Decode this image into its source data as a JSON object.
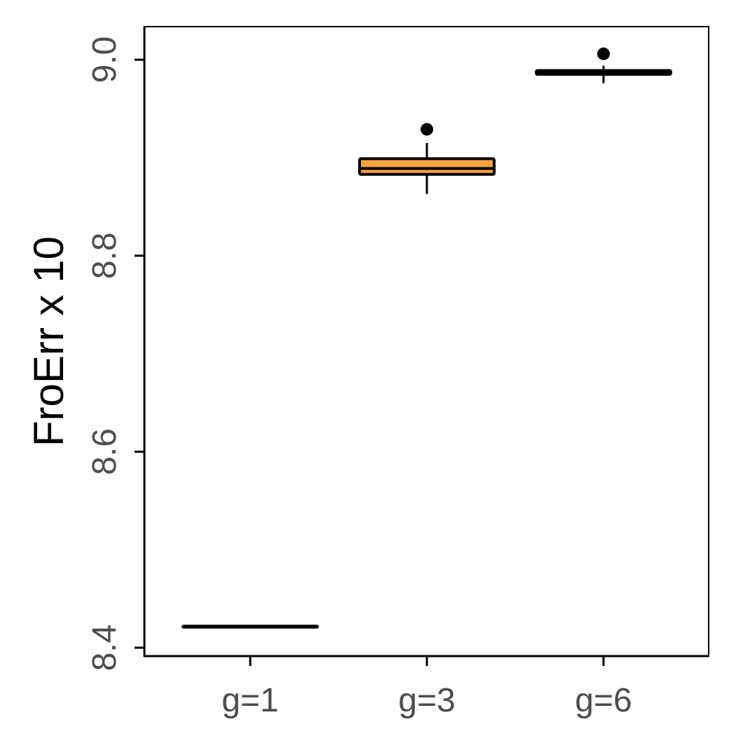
{
  "chart_data": {
    "type": "box",
    "title": "",
    "xlabel": "",
    "ylabel": "FroErr x 10",
    "ylim": [
      8.4,
      9.04
    ],
    "yticks": [
      8.4,
      8.6,
      8.8,
      9.0
    ],
    "ytick_labels": [
      "8.4",
      "8.6",
      "8.8",
      "9.0"
    ],
    "categories": [
      "g=1",
      "g=3",
      "g=6"
    ],
    "grid": false,
    "legend": "none",
    "boxes": [
      {
        "category": "g=1",
        "whisker_low": 8.421,
        "q1": 8.421,
        "median": 8.421,
        "q3": 8.422,
        "whisker_high": 8.422,
        "outliers": [],
        "fill": "#000000"
      },
      {
        "category": "g=3",
        "whisker_low": 8.863,
        "q1": 8.883,
        "median": 8.889,
        "q3": 8.899,
        "whisker_high": 8.915,
        "outliers": [
          8.929
        ],
        "fill": "#F5A33C"
      },
      {
        "category": "g=6",
        "whisker_low": 8.976,
        "q1": 8.985,
        "median": 8.987,
        "q3": 8.989,
        "whisker_high": 8.994,
        "outliers": [
          9.006
        ],
        "fill": "#000000"
      }
    ]
  }
}
